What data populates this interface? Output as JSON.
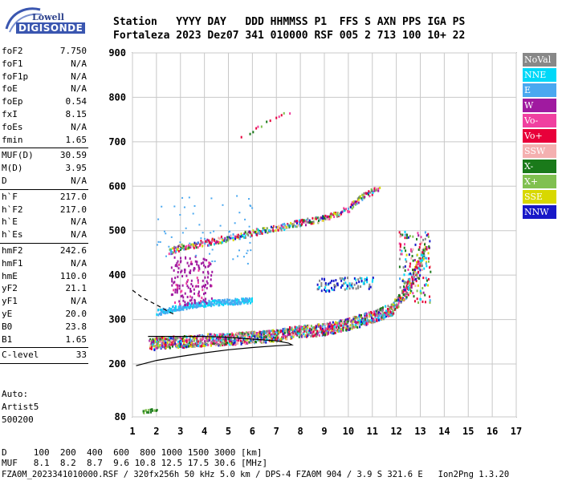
{
  "logo": {
    "line1": "Lowell",
    "line2": "DIGISONDE"
  },
  "header": {
    "line1": "Station   YYYY DAY   DDD HHMMSS P1  FFS S AXN PPS IGA PS",
    "line2": "Fortaleza 2023 Dez07 341 010000 RSF 005 2 713 100 10+ 22"
  },
  "params": [
    {
      "name": "foF2",
      "value": "7.750",
      "sep": false
    },
    {
      "name": "foF1",
      "value": "N/A",
      "sep": false
    },
    {
      "name": "foF1p",
      "value": "N/A",
      "sep": false
    },
    {
      "name": "foE",
      "value": "N/A",
      "sep": false
    },
    {
      "name": "foEp",
      "value": "0.54",
      "sep": false
    },
    {
      "name": "fxI",
      "value": "8.15",
      "sep": false
    },
    {
      "name": "foEs",
      "value": "N/A",
      "sep": false
    },
    {
      "name": "fmin",
      "value": "1.65",
      "sep": true
    },
    {
      "name": "MUF(D)",
      "value": "30.59",
      "sep": false
    },
    {
      "name": "M(D)",
      "value": "3.95",
      "sep": false
    },
    {
      "name": "D",
      "value": "N/A",
      "sep": true
    },
    {
      "name": "h`F",
      "value": "217.0",
      "sep": false
    },
    {
      "name": "h`F2",
      "value": "217.0",
      "sep": false
    },
    {
      "name": "h`E",
      "value": "N/A",
      "sep": false
    },
    {
      "name": "h`Es",
      "value": "N/A",
      "sep": true
    },
    {
      "name": "hmF2",
      "value": "242.6",
      "sep": false
    },
    {
      "name": "hmF1",
      "value": "N/A",
      "sep": false
    },
    {
      "name": "hmE",
      "value": "110.0",
      "sep": false
    },
    {
      "name": "yF2",
      "value": "21.1",
      "sep": false
    },
    {
      "name": "yF1",
      "value": "N/A",
      "sep": false
    },
    {
      "name": "yE",
      "value": "20.0",
      "sep": false
    },
    {
      "name": "B0",
      "value": "23.8",
      "sep": false
    },
    {
      "name": "B1",
      "value": "1.65",
      "sep": true
    },
    {
      "name": "C-level",
      "value": "33",
      "sep": true
    }
  ],
  "extra": {
    "line1": "Auto:",
    "line2": "Artist5",
    "line3": "500200"
  },
  "footer": {
    "line1": "D     100  200  400  600  800 1000 1500 3000 [km]",
    "line2": "MUF   8.1  8.2  8.7  9.6 10.8 12.5 17.5 30.6 [MHz]",
    "line3": "FZA0M_2023341010000.RSF / 320fx256h 50 kHz 5.0 km / DPS-4 FZA0M 904 / 3.9 S 321.6 E   Ion2Png 1.3.20"
  },
  "colors": {
    "NoVal": "#888888",
    "NNE": "#00d8f8",
    "E": "#4aa8f0",
    "W": "#a01aa0",
    "Vo-": "#f040a0",
    "Vo+": "#e8003a",
    "SSW": "#f4b0b0",
    "X-": "#1a7a1a",
    "X+": "#80c050",
    "SSE": "#d8d800",
    "NNW": "#1818c8"
  },
  "chart_data": {
    "type": "scatter",
    "title": "",
    "xlabel": "",
    "ylabel": "",
    "xlim": [
      1,
      17
    ],
    "ylim": [
      80,
      900
    ],
    "x_ticks": [
      1,
      2,
      3,
      4,
      5,
      6,
      7,
      8,
      9,
      10,
      11,
      12,
      13,
      14,
      15,
      16,
      17
    ],
    "y_ticks": [
      80,
      200,
      300,
      400,
      500,
      600,
      700,
      800,
      900
    ],
    "grid": true,
    "legend_position": "right",
    "legend": [
      "NoVal",
      "NNE",
      "E",
      "W",
      "Vo-",
      "Vo+",
      "SSW",
      "X-",
      "X+",
      "SSE",
      "NNW"
    ],
    "traces": [
      {
        "name": "F2 O-trace",
        "points": [
          [
            1.7,
            245
          ],
          [
            2.2,
            250
          ],
          [
            3,
            252
          ],
          [
            4,
            256
          ],
          [
            5,
            258
          ],
          [
            6,
            262
          ],
          [
            7,
            266
          ],
          [
            7.5,
            272
          ],
          [
            8,
            275
          ],
          [
            9,
            280
          ],
          [
            10,
            292
          ],
          [
            11,
            308
          ],
          [
            11.8,
            325
          ],
          [
            12.3,
            360
          ],
          [
            12.8,
            410
          ],
          [
            13.2,
            460
          ]
        ]
      },
      {
        "name": "2nd hop",
        "points": [
          [
            2.5,
            455
          ],
          [
            3,
            465
          ],
          [
            4,
            475
          ],
          [
            5,
            485
          ],
          [
            6,
            498
          ],
          [
            7,
            508
          ],
          [
            8,
            520
          ],
          [
            9,
            530
          ],
          [
            10,
            552
          ],
          [
            10.5,
            575
          ],
          [
            11,
            590
          ],
          [
            11.3,
            600
          ]
        ]
      },
      {
        "name": "3rd hop",
        "points": [
          [
            5.5,
            710
          ],
          [
            6,
            728
          ],
          [
            6.5,
            742
          ],
          [
            7,
            755
          ],
          [
            7.5,
            768
          ],
          [
            8,
            782
          ]
        ]
      },
      {
        "name": "E trace",
        "points": [
          [
            2,
            318
          ],
          [
            3,
            330
          ],
          [
            4,
            338
          ],
          [
            5,
            342
          ],
          [
            6,
            345
          ]
        ]
      },
      {
        "name": "Oblique echoes",
        "points": [
          [
            8.7,
            380
          ],
          [
            9.3,
            378
          ],
          [
            10,
            385
          ],
          [
            10.5,
            385
          ],
          [
            11,
            383
          ]
        ]
      },
      {
        "name": "Low echoes",
        "points": [
          [
            1.4,
            93
          ],
          [
            1.7,
            96
          ],
          [
            2,
            99
          ]
        ]
      }
    ],
    "profile": {
      "name": "Profile",
      "points": [
        [
          1.15,
          196
        ],
        [
          2,
          208
        ],
        [
          3,
          217
        ],
        [
          4,
          225
        ],
        [
          5,
          232
        ],
        [
          6,
          237
        ],
        [
          7,
          241
        ],
        [
          7.65,
          243
        ],
        [
          7.5,
          247
        ],
        [
          7,
          252
        ],
        [
          6,
          256
        ],
        [
          5,
          260
        ],
        [
          4,
          262
        ],
        [
          3,
          262
        ],
        [
          2,
          262
        ],
        [
          1.65,
          262
        ]
      ]
    },
    "profile_dashed": {
      "name": "Profile extension",
      "points": [
        [
          1,
          366
        ],
        [
          1.4,
          350
        ],
        [
          2,
          333
        ],
        [
          2.5,
          318
        ],
        [
          2.8,
          310
        ]
      ]
    }
  }
}
